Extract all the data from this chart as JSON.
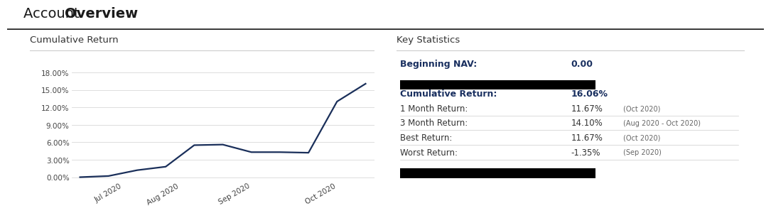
{
  "title_normal": "Account ",
  "title_bold": "Overview",
  "left_panel_title": "Cumulative Return",
  "right_panel_title": "Key Statistics",
  "line_x": [
    0,
    1,
    2,
    3,
    4,
    5,
    6,
    7,
    8,
    9,
    10
  ],
  "line_y": [
    0.0,
    0.002,
    0.012,
    0.018,
    0.055,
    0.056,
    0.043,
    0.043,
    0.042,
    0.13,
    0.1606
  ],
  "x_tick_positions": [
    1.5,
    3.5,
    6.0,
    9.0
  ],
  "x_tick_labels": [
    "Jul 2020",
    "Aug 2020",
    "Sep 2020",
    "Oct 2020"
  ],
  "y_ticks": [
    0.0,
    0.03,
    0.06,
    0.09,
    0.12,
    0.15,
    0.18
  ],
  "y_tick_labels": [
    "0.00%",
    "3.00%",
    "6.00%",
    "9.00%",
    "12.00%",
    "15.00%",
    "18.00%"
  ],
  "ylim": [
    -0.005,
    0.195
  ],
  "line_color": "#1a2f5a",
  "line_width": 1.6,
  "grid_color": "#d8d8d8",
  "bg_color": "#ffffff",
  "title_color": "#1a1a1a",
  "panel_title_color": "#333333",
  "divider_color": "#cccccc",
  "stats_bold_color": "#1a3060",
  "stats_normal_color": "#333333",
  "stats_period_color": "#666666",
  "redacted_color": "#000000",
  "stats": [
    {
      "label": "Beginning NAV:",
      "value": "0.00",
      "period": "",
      "bold": true,
      "redact_after": true
    },
    {
      "label": "Cumulative Return:",
      "value": "16.06%",
      "period": "",
      "bold": true,
      "redact_after": false
    },
    {
      "label": "1 Month Return:",
      "value": "11.67%",
      "period": "(Oct 2020)",
      "bold": false,
      "redact_after": false
    },
    {
      "label": "3 Month Return:",
      "value": "14.10%",
      "period": "(Aug 2020 - Oct 2020)",
      "bold": false,
      "redact_after": false
    },
    {
      "label": "Best Return:",
      "value": "11.67%",
      "period": "(Oct 2020)",
      "bold": false,
      "redact_after": false
    },
    {
      "label": "Worst Return:",
      "value": "-1.35%",
      "period": "(Sep 2020)",
      "bold": false,
      "redact_after": true
    }
  ]
}
